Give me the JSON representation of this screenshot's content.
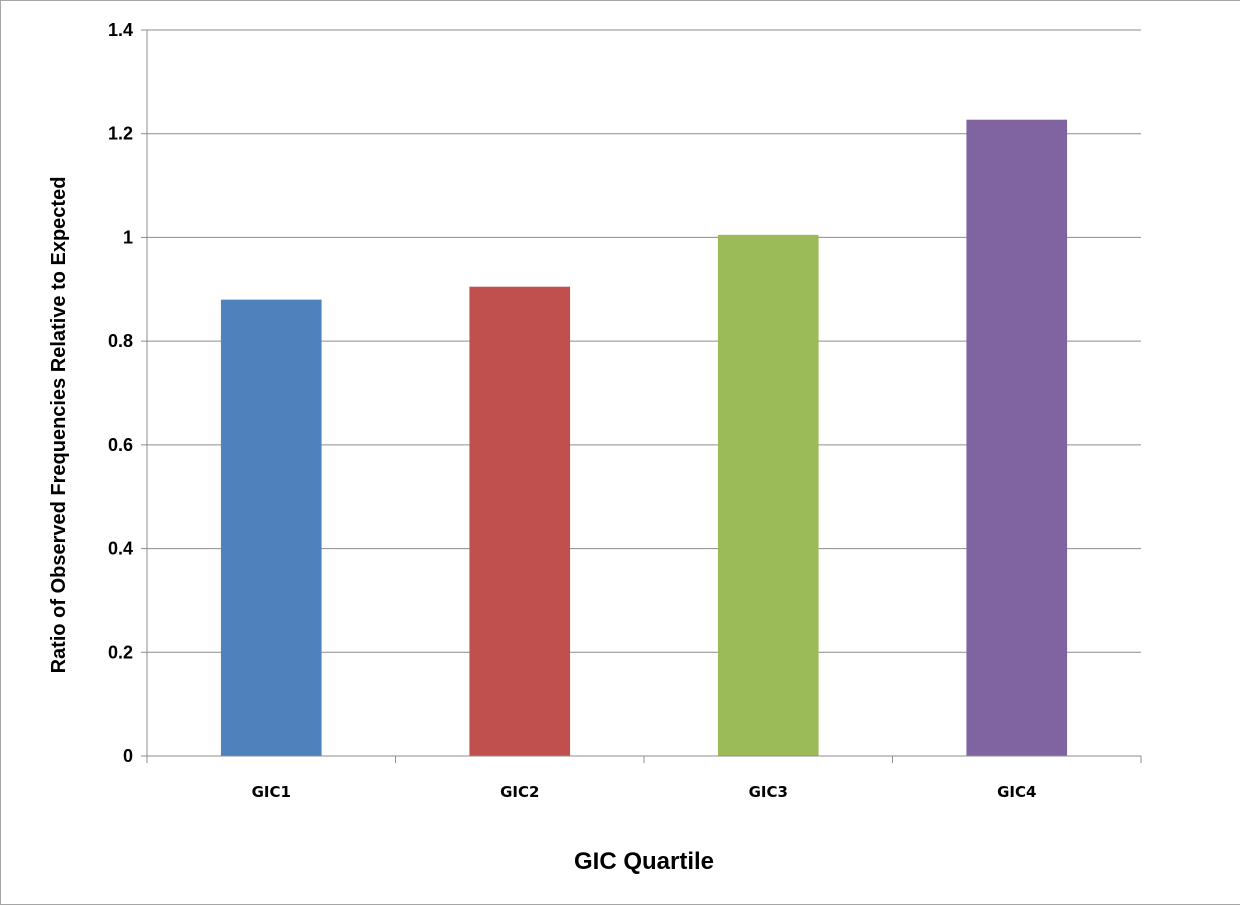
{
  "chart_data": {
    "type": "bar",
    "categories": [
      "GIC1",
      "GIC2",
      "GIC3",
      "GIC4"
    ],
    "values": [
      0.88,
      0.905,
      1.005,
      1.227
    ],
    "colors": [
      "#4f81bd",
      "#c0504d",
      "#9bbb59",
      "#8064a2"
    ],
    "xlabel": "GIC Quartile",
    "ylabel": "Ratio of Observed Frequencies Relative to Expected",
    "ylim": [
      0,
      1.4
    ],
    "yticks": [
      "0",
      "0.2",
      "0.4",
      "0.6",
      "0.8",
      "1",
      "1.2",
      "1.4"
    ],
    "grid": true,
    "legend": "none"
  }
}
